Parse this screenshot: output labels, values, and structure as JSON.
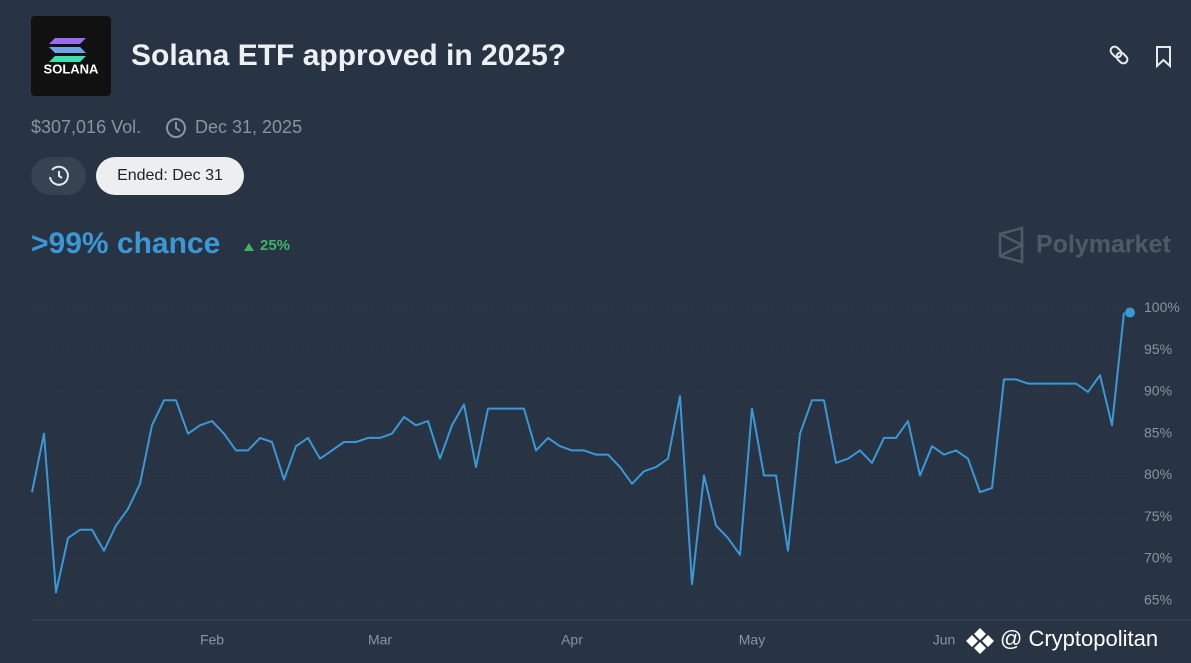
{
  "header": {
    "logo_text": "SOLANA",
    "title": "Solana ETF approved in 2025?",
    "volume": "$307,016 Vol.",
    "end_date": "Dec 31, 2025",
    "status": "Ended: Dec 31",
    "chance": ">99% chance",
    "change": "25%",
    "brand": "Polymarket"
  },
  "chart_data": {
    "type": "line",
    "color": "#3b98d6",
    "categories": [
      null,
      null,
      null,
      null,
      null,
      null,
      null,
      null,
      null,
      null,
      null,
      null,
      null,
      null,
      null,
      "Feb",
      null,
      null,
      null,
      null,
      null,
      null,
      null,
      null,
      null,
      null,
      null,
      null,
      null,
      "Mar",
      null,
      null,
      null,
      null,
      null,
      null,
      null,
      null,
      null,
      null,
      null,
      null,
      null,
      null,
      null,
      "Apr",
      null,
      null,
      null,
      null,
      null,
      null,
      null,
      null,
      null,
      null,
      null,
      null,
      null,
      null,
      "May",
      null,
      null,
      null,
      null,
      null,
      null,
      null,
      null,
      null,
      null,
      null,
      null,
      null,
      null,
      null,
      "Jun",
      null,
      null,
      null,
      null,
      null,
      null,
      null,
      null,
      null,
      null,
      null,
      null,
      null,
      null,
      null
    ],
    "values": [
      78,
      85,
      66,
      72.5,
      73.5,
      73.5,
      71,
      74,
      76,
      79,
      86,
      89,
      89,
      85,
      86,
      86.5,
      85,
      83,
      83,
      84.5,
      84,
      79.5,
      83.5,
      84.5,
      82,
      83,
      84,
      84,
      84.5,
      84.5,
      85,
      87,
      86,
      86.5,
      82,
      86,
      88.5,
      81,
      88,
      88,
      88,
      88,
      83,
      84.5,
      83.5,
      83,
      83,
      82.5,
      82.5,
      81,
      79,
      80.5,
      81,
      82,
      89.5,
      67,
      80,
      74,
      72.5,
      70.5,
      88,
      80,
      80,
      71,
      85,
      89,
      89,
      81.5,
      82,
      83,
      81.5,
      84.5,
      84.5,
      86.5,
      80,
      83.5,
      82.5,
      83,
      82,
      78,
      78.5,
      91.5,
      91.5,
      91,
      91,
      91,
      91,
      91,
      90,
      92,
      86,
      99.5
    ],
    "ylim": [
      62.7,
      101
    ],
    "yticks": [
      {
        "value": 65,
        "label": "65%"
      },
      {
        "value": 70,
        "label": "70%"
      },
      {
        "value": 75,
        "label": "75%"
      },
      {
        "value": 80,
        "label": "80%"
      },
      {
        "value": 85,
        "label": "85%"
      },
      {
        "value": 90,
        "label": "90%"
      },
      {
        "value": 95,
        "label": "95%"
      },
      {
        "value": 100,
        "label": "100%"
      }
    ],
    "grid": true
  },
  "watermark": "@ Cryptopolitan"
}
